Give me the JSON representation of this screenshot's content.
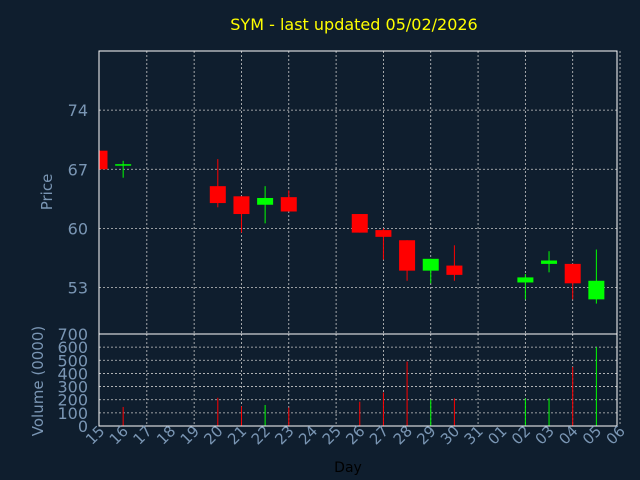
{
  "colors": {
    "background": "#0f1e2e",
    "title": "#ffff00",
    "axis_text": "#7a96b4",
    "frame": "#ffffff",
    "grid": "#c8c8c8",
    "up": "#00ff00",
    "down": "#ff0000",
    "label": "#000000"
  },
  "chart_data": [
    {
      "type": "candlestick",
      "title": "SYM - last updated 05/02/2026",
      "ylabel": "Price",
      "xlabel": "",
      "ylim": [
        47.5,
        81.0
      ],
      "yticks": [
        53,
        60,
        67,
        74
      ],
      "grid": true,
      "categories": [
        "15",
        "16",
        "17",
        "18",
        "19",
        "20",
        "21",
        "22",
        "23",
        "24",
        "25",
        "26",
        "27",
        "28",
        "29",
        "30",
        "31",
        "01",
        "02",
        "03",
        "04",
        "05",
        "06"
      ],
      "candles": [
        {
          "x": "15",
          "open": 69.2,
          "high": 69.2,
          "low": 67.0,
          "close": 67.0
        },
        {
          "x": "16",
          "open": 67.6,
          "high": 68.0,
          "low": 66.0,
          "close": 67.6
        },
        {
          "x": "20",
          "open": 65.0,
          "high": 68.2,
          "low": 62.5,
          "close": 63.0
        },
        {
          "x": "21",
          "open": 63.8,
          "high": 63.8,
          "low": 59.5,
          "close": 61.7
        },
        {
          "x": "22",
          "open": 62.8,
          "high": 65.0,
          "low": 60.6,
          "close": 63.6
        },
        {
          "x": "23",
          "open": 63.7,
          "high": 64.5,
          "low": 62.0,
          "close": 62.0
        },
        {
          "x": "26",
          "open": 61.7,
          "high": 61.7,
          "low": 59.5,
          "close": 59.5
        },
        {
          "x": "27",
          "open": 59.8,
          "high": 60.0,
          "low": 56.3,
          "close": 59.0
        },
        {
          "x": "28",
          "open": 58.6,
          "high": 58.6,
          "low": 53.8,
          "close": 55.0
        },
        {
          "x": "29",
          "open": 55.0,
          "high": 56.4,
          "low": 53.5,
          "close": 56.4
        },
        {
          "x": "30",
          "open": 55.6,
          "high": 58.0,
          "low": 53.8,
          "close": 54.5
        },
        {
          "x": "02",
          "open": 53.6,
          "high": 54.6,
          "low": 51.6,
          "close": 54.2
        },
        {
          "x": "03",
          "open": 55.8,
          "high": 57.3,
          "low": 54.8,
          "close": 56.2
        },
        {
          "x": "04",
          "open": 55.8,
          "high": 55.8,
          "low": 51.6,
          "close": 53.5
        },
        {
          "x": "05",
          "open": 51.6,
          "high": 57.5,
          "low": 51.1,
          "close": 53.8
        }
      ]
    },
    {
      "type": "bar",
      "ylabel": "Volume (0000)",
      "xlabel": "Day",
      "ylim": [
        0,
        700
      ],
      "yticks": [
        0,
        100,
        200,
        300,
        400,
        500,
        600,
        700
      ],
      "grid": true,
      "categories": [
        "15",
        "16",
        "17",
        "18",
        "19",
        "20",
        "21",
        "22",
        "23",
        "24",
        "25",
        "26",
        "27",
        "28",
        "29",
        "30",
        "31",
        "01",
        "02",
        "03",
        "04",
        "05",
        "06"
      ],
      "bars": [
        {
          "x": "16",
          "value": 145,
          "direction": "down"
        },
        {
          "x": "20",
          "value": 215,
          "direction": "down"
        },
        {
          "x": "21",
          "value": 150,
          "direction": "down"
        },
        {
          "x": "22",
          "value": 160,
          "direction": "up"
        },
        {
          "x": "23",
          "value": 140,
          "direction": "down"
        },
        {
          "x": "26",
          "value": 185,
          "direction": "down"
        },
        {
          "x": "27",
          "value": 255,
          "direction": "down"
        },
        {
          "x": "28",
          "value": 490,
          "direction": "down"
        },
        {
          "x": "29",
          "value": 200,
          "direction": "up"
        },
        {
          "x": "30",
          "value": 210,
          "direction": "down"
        },
        {
          "x": "02",
          "value": 210,
          "direction": "up"
        },
        {
          "x": "03",
          "value": 210,
          "direction": "up"
        },
        {
          "x": "04",
          "value": 450,
          "direction": "down"
        },
        {
          "x": "05",
          "value": 600,
          "direction": "up"
        }
      ]
    }
  ]
}
